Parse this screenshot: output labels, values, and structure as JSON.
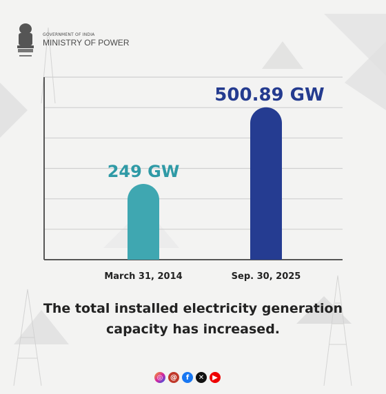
{
  "header": {
    "govt": "GOVERNMENT OF INDIA",
    "ministry": "MINISTRY OF POWER"
  },
  "caption": {
    "line1": "The total installed electricity generation",
    "line2": "capacity has increased."
  },
  "colors": {
    "bar_2014": "#3fa7b1",
    "bar_2025": "#253c91",
    "label_2014": "#2f9aa6",
    "label_2025": "#243b8f"
  },
  "socials": [
    "instagram-icon",
    "threads-icon",
    "facebook-icon",
    "x-icon",
    "youtube-icon"
  ],
  "chart_data": {
    "type": "bar",
    "categories": [
      "March 31, 2014",
      "Sep. 30, 2025"
    ],
    "values": [
      249,
      500.89
    ],
    "value_labels": [
      "249 GW",
      "500.89 GW"
    ],
    "ylim": [
      0,
      600
    ],
    "grid": true,
    "xlabel": "",
    "ylabel": ""
  }
}
